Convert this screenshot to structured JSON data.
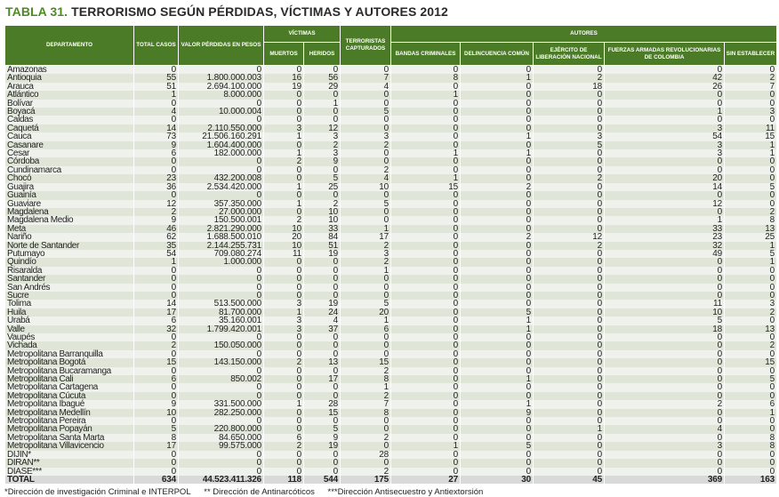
{
  "title": {
    "label": "TABLA 31.",
    "text": "TERRORISMO SEGÚN PÉRDIDAS, VÍCTIMAS Y AUTORES 2012"
  },
  "header": {
    "departamento": "DEPARTAMENTO",
    "total_casos": "TOTAL CASOS",
    "valor_perdidas": "VALOR PÉRDIDAS EN PESOS",
    "victimas": "VÍCTIMAS",
    "muertos": "MUERTOS",
    "heridos": "HERIDOS",
    "capturados": "TERRORISTAS CAPTURADOS",
    "autores": "AUTORES",
    "bandas": "BANDAS CRIMINALES",
    "delincuencia": "DELINCUENCIA COMÚN",
    "eln": "EJÉRCITO DE LIBERACIÓN NACIONAL",
    "farc": "FUERZAS ARMADAS REVOLUCIONARIAS DE COLOMBIA",
    "sin": "SIN ESTABLECER"
  },
  "rows": [
    [
      "Amazonas",
      "0",
      "0",
      "0",
      "0",
      "0",
      "0",
      "0",
      "0",
      "0",
      "0"
    ],
    [
      "Antioquia",
      "55",
      "1.800.000.003",
      "16",
      "56",
      "7",
      "8",
      "1",
      "2",
      "42",
      "2"
    ],
    [
      "Arauca",
      "51",
      "2.694.100.000",
      "19",
      "29",
      "4",
      "0",
      "0",
      "18",
      "26",
      "7"
    ],
    [
      "Atlántico",
      "1",
      "8.000.000",
      "0",
      "0",
      "0",
      "1",
      "0",
      "0",
      "0",
      "0"
    ],
    [
      "Bolívar",
      "0",
      "0",
      "0",
      "1",
      "0",
      "0",
      "0",
      "0",
      "0",
      "0"
    ],
    [
      "Boyacá",
      "4",
      "10.000.004",
      "0",
      "0",
      "5",
      "0",
      "0",
      "0",
      "1",
      "3"
    ],
    [
      "Caldas",
      "0",
      "0",
      "0",
      "0",
      "0",
      "0",
      "0",
      "0",
      "0",
      "0"
    ],
    [
      "Caquetá",
      "14",
      "2.110.550.000",
      "3",
      "12",
      "0",
      "0",
      "0",
      "0",
      "3",
      "11"
    ],
    [
      "Cauca",
      "73",
      "21.506.160.291",
      "1",
      "3",
      "3",
      "0",
      "1",
      "3",
      "54",
      "15"
    ],
    [
      "Casanare",
      "9",
      "1.604.400.000",
      "0",
      "2",
      "2",
      "0",
      "0",
      "5",
      "3",
      "1"
    ],
    [
      "Cesar",
      "6",
      "182.000.000",
      "1",
      "3",
      "0",
      "1",
      "1",
      "0",
      "3",
      "1"
    ],
    [
      "Córdoba",
      "0",
      "0",
      "2",
      "9",
      "0",
      "0",
      "0",
      "0",
      "0",
      "0"
    ],
    [
      "Cundinamarca",
      "0",
      "0",
      "0",
      "0",
      "2",
      "0",
      "0",
      "0",
      "0",
      "0"
    ],
    [
      "Chocó",
      "23",
      "432.200.008",
      "0",
      "5",
      "4",
      "1",
      "0",
      "2",
      "20",
      "0"
    ],
    [
      "Guajira",
      "36",
      "2.534.420.000",
      "1",
      "25",
      "10",
      "15",
      "2",
      "0",
      "14",
      "5"
    ],
    [
      "Guainía",
      "0",
      "0",
      "0",
      "0",
      "0",
      "0",
      "0",
      "0",
      "0",
      "0"
    ],
    [
      "Guaviare",
      "12",
      "357.350.000",
      "1",
      "2",
      "5",
      "0",
      "0",
      "0",
      "12",
      "0"
    ],
    [
      "Magdalena",
      "2",
      "27.000.000",
      "0",
      "10",
      "0",
      "0",
      "0",
      "0",
      "0",
      "2"
    ],
    [
      "Magdalena Medio",
      "9",
      "150.500.001",
      "2",
      "10",
      "0",
      "0",
      "0",
      "0",
      "1",
      "8"
    ],
    [
      "Meta",
      "46",
      "2.821.290.000",
      "10",
      "33",
      "1",
      "0",
      "0",
      "0",
      "33",
      "13"
    ],
    [
      "Nariño",
      "62",
      "1.688.500.010",
      "20",
      "84",
      "17",
      "0",
      "2",
      "12",
      "23",
      "25"
    ],
    [
      "Norte de Santander",
      "35",
      "2.144.255.731",
      "10",
      "51",
      "2",
      "0",
      "0",
      "2",
      "32",
      "1"
    ],
    [
      "Putumayo",
      "54",
      "709.080.274",
      "11",
      "19",
      "3",
      "0",
      "0",
      "0",
      "49",
      "5"
    ],
    [
      "Quindío",
      "1",
      "1.000.000",
      "0",
      "0",
      "2",
      "0",
      "0",
      "0",
      "0",
      "1"
    ],
    [
      "Risaralda",
      "0",
      "0",
      "0",
      "0",
      "1",
      "0",
      "0",
      "0",
      "0",
      "0"
    ],
    [
      "Santander",
      "0",
      "0",
      "0",
      "0",
      "0",
      "0",
      "0",
      "0",
      "0",
      "0"
    ],
    [
      "San Andrés",
      "0",
      "0",
      "0",
      "0",
      "0",
      "0",
      "0",
      "0",
      "0",
      "0"
    ],
    [
      "Sucre",
      "0",
      "0",
      "0",
      "0",
      "0",
      "0",
      "0",
      "0",
      "0",
      "0"
    ],
    [
      "Tolima",
      "14",
      "513.500.000",
      "3",
      "19",
      "5",
      "0",
      "0",
      "0",
      "11",
      "3"
    ],
    [
      "Huila",
      "17",
      "81.700.000",
      "1",
      "24",
      "20",
      "0",
      "5",
      "0",
      "10",
      "2"
    ],
    [
      "Urabá",
      "6",
      "35.160.001",
      "3",
      "4",
      "1",
      "0",
      "1",
      "0",
      "5",
      "0"
    ],
    [
      "Valle",
      "32",
      "1.799.420.001",
      "3",
      "37",
      "6",
      "0",
      "1",
      "0",
      "18",
      "13"
    ],
    [
      "Vaupés",
      "0",
      "0",
      "0",
      "0",
      "0",
      "0",
      "0",
      "0",
      "0",
      "0"
    ],
    [
      "Vichada",
      "2",
      "150.050.000",
      "0",
      "0",
      "0",
      "0",
      "0",
      "0",
      "0",
      "2"
    ],
    [
      "Metropolitana Barranquilla",
      "0",
      "0",
      "0",
      "0",
      "0",
      "0",
      "0",
      "0",
      "0",
      "0"
    ],
    [
      "Metropolitana Bogotá",
      "15",
      "143.150.000",
      "2",
      "13",
      "15",
      "0",
      "0",
      "0",
      "0",
      "15"
    ],
    [
      "Metropolitana Bucaramanga",
      "0",
      "0",
      "0",
      "0",
      "2",
      "0",
      "0",
      "0",
      "0",
      "0"
    ],
    [
      "Metropolitana Cali",
      "6",
      "850.002",
      "0",
      "17",
      "8",
      "0",
      "1",
      "0",
      "0",
      "5"
    ],
    [
      "Metropolitana Cartagena",
      "0",
      "0",
      "0",
      "0",
      "1",
      "0",
      "0",
      "0",
      "0",
      "0"
    ],
    [
      "Metropolitana Cúcuta",
      "0",
      "0",
      "0",
      "0",
      "2",
      "0",
      "0",
      "0",
      "0",
      "0"
    ],
    [
      "Metropolitana Ibagué",
      "9",
      "331.500.000",
      "1",
      "28",
      "7",
      "0",
      "1",
      "0",
      "2",
      "6"
    ],
    [
      "Metropolitana Medellín",
      "10",
      "282.250.000",
      "0",
      "15",
      "8",
      "0",
      "9",
      "0",
      "0",
      "1"
    ],
    [
      "Metropolitana Pereira",
      "0",
      "0",
      "0",
      "0",
      "0",
      "0",
      "0",
      "0",
      "0",
      "0"
    ],
    [
      "Metropolitana Popayán",
      "5",
      "220.800.000",
      "0",
      "5",
      "0",
      "0",
      "0",
      "1",
      "4",
      "0"
    ],
    [
      "Metropolitana Santa Marta",
      "8",
      "84.650.000",
      "6",
      "9",
      "2",
      "0",
      "0",
      "0",
      "0",
      "8"
    ],
    [
      "Metropolitana Villavicencio",
      "17",
      "99.575.000",
      "2",
      "19",
      "0",
      "1",
      "5",
      "0",
      "3",
      "8"
    ],
    [
      "DIJIN*",
      "0",
      "0",
      "0",
      "0",
      "28",
      "0",
      "0",
      "0",
      "0",
      "0"
    ],
    [
      "DIRAN**",
      "0",
      "0",
      "0",
      "0",
      "0",
      "0",
      "0",
      "0",
      "0",
      "0"
    ],
    [
      "DIASE***",
      "0",
      "0",
      "0",
      "0",
      "2",
      "0",
      "0",
      "0",
      "0",
      "0"
    ]
  ],
  "total": [
    "TOTAL",
    "634",
    "44.523.411.326",
    "118",
    "544",
    "175",
    "27",
    "30",
    "45",
    "369",
    "163"
  ],
  "footnotes": [
    "*Dirección de investigación Criminal e INTERPOL",
    "** Dirección de Antinarcóticos",
    "***Dirección Antisecuestro y Antiextorsión"
  ],
  "colors": {
    "header_green": "#4b7b26",
    "title_green": "#4e8a24",
    "row_light": "#eff2ec",
    "row_dark": "#dfe6d7",
    "total_row": "#d9d9d9"
  }
}
